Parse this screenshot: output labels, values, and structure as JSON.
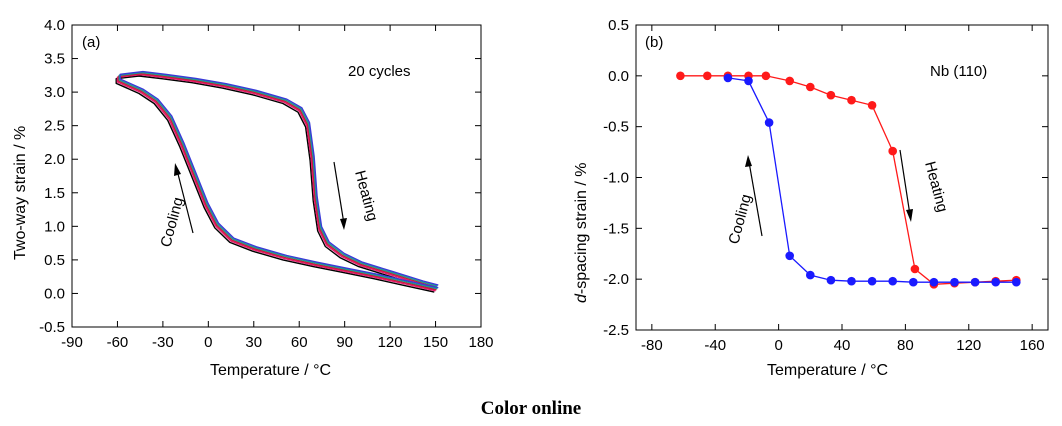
{
  "footer": "Color online",
  "chart_data": [
    {
      "type": "line",
      "panel_label": "(a)",
      "xlabel": "Temperature / °C",
      "ylabel": "Two-way strain / %",
      "xlim": [
        -90,
        180
      ],
      "ylim": [
        -0.5,
        4.0
      ],
      "xticks": [
        -90,
        -60,
        -30,
        0,
        30,
        60,
        90,
        120,
        150,
        180
      ],
      "yticks": [
        -0.5,
        0.0,
        0.5,
        1.0,
        1.5,
        2.0,
        2.5,
        3.0,
        3.5,
        4.0
      ],
      "ytick_labels": [
        "-0.5",
        "0.0",
        "0.5",
        "1.0",
        "1.5",
        "2.0",
        "2.5",
        "3.0",
        "3.5",
        "4.0"
      ],
      "annotations": {
        "cycles": "20 cycles",
        "heating": "Heating",
        "cooling": "Cooling"
      },
      "loop": {
        "cooling_branch": [
          [
            150,
            0.04
          ],
          [
            130,
            0.14
          ],
          [
            110,
            0.24
          ],
          [
            90,
            0.33
          ],
          [
            70,
            0.42
          ],
          [
            50,
            0.52
          ],
          [
            30,
            0.65
          ],
          [
            15,
            0.78
          ],
          [
            5,
            1.0
          ],
          [
            -2,
            1.3
          ],
          [
            -10,
            1.75
          ],
          [
            -18,
            2.2
          ],
          [
            -26,
            2.6
          ],
          [
            -35,
            2.85
          ],
          [
            -45,
            3.0
          ],
          [
            -55,
            3.1
          ],
          [
            -60,
            3.15
          ]
        ],
        "heating_branch": [
          [
            -60,
            3.22
          ],
          [
            -45,
            3.26
          ],
          [
            -30,
            3.22
          ],
          [
            -10,
            3.16
          ],
          [
            10,
            3.08
          ],
          [
            30,
            2.98
          ],
          [
            50,
            2.85
          ],
          [
            60,
            2.72
          ],
          [
            65,
            2.5
          ],
          [
            68,
            2.0
          ],
          [
            70,
            1.4
          ],
          [
            73,
            0.95
          ],
          [
            78,
            0.72
          ],
          [
            88,
            0.55
          ],
          [
            100,
            0.42
          ],
          [
            120,
            0.28
          ],
          [
            140,
            0.14
          ],
          [
            150,
            0.08
          ]
        ]
      },
      "series": [
        {
          "name": "",
          "color": "#000000",
          "offset": -0.02
        },
        {
          "name": "",
          "color": "#e8186c",
          "offset": 0.0
        },
        {
          "name": "",
          "color": "#c41e3a",
          "offset": 0.015
        },
        {
          "name": "",
          "color": "#1aa08c",
          "offset": 0.03
        },
        {
          "name": "",
          "color": "#3a3ad8",
          "offset": 0.045
        }
      ]
    },
    {
      "type": "line",
      "panel_label": "(b)",
      "xlabel": "Temperature / °C",
      "ylabel_prefix": "d",
      "ylabel": "-spacing strain / %",
      "xlim": [
        -90,
        170
      ],
      "ylim": [
        -2.5,
        0.5
      ],
      "xticks": [
        -80,
        -40,
        0,
        40,
        80,
        120,
        160
      ],
      "yticks": [
        -2.5,
        -2.0,
        -1.5,
        -1.0,
        -0.5,
        0.0,
        0.5
      ],
      "ytick_labels": [
        "-2.5",
        "-2.0",
        "-1.5",
        "-1.0",
        "-0.5",
        "0.0",
        "0.5"
      ],
      "annotations": {
        "peak": "Nb (110)",
        "heating": "Heating",
        "cooling": "Cooling"
      },
      "series": [
        {
          "name": "Heating",
          "color": "#ff1a1a",
          "x": [
            -62,
            -45,
            -32,
            -19,
            -8,
            7,
            20,
            33,
            46,
            59,
            72,
            86,
            98,
            111,
            124,
            137,
            150
          ],
          "y": [
            0.0,
            0.0,
            0.0,
            0.0,
            0.0,
            -0.05,
            -0.11,
            -0.19,
            -0.24,
            -0.29,
            -0.74,
            -1.9,
            -2.05,
            -2.04,
            -2.03,
            -2.02,
            -2.01
          ]
        },
        {
          "name": "Cooling",
          "color": "#1a1aff",
          "x": [
            150,
            137,
            124,
            111,
            98,
            85,
            72,
            59,
            46,
            33,
            20,
            7,
            -6,
            -19,
            -32
          ],
          "y": [
            -2.03,
            -2.03,
            -2.03,
            -2.03,
            -2.03,
            -2.03,
            -2.02,
            -2.02,
            -2.02,
            -2.01,
            -1.96,
            -1.77,
            -0.46,
            -0.05,
            -0.02
          ]
        }
      ]
    }
  ]
}
